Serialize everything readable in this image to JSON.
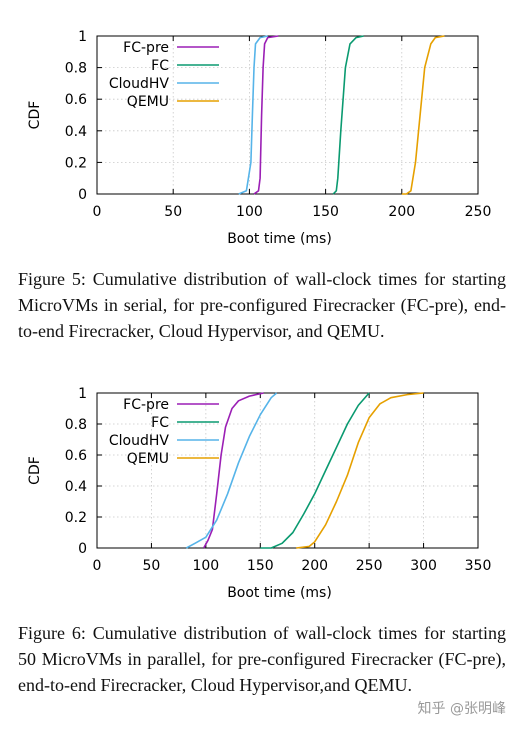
{
  "chart_data": [
    {
      "type": "line",
      "xlabel": "Boot time (ms)",
      "ylabel": "CDF",
      "xlim": [
        0,
        250
      ],
      "ylim": [
        0,
        1
      ],
      "xticks": [
        0,
        50,
        100,
        150,
        200,
        250
      ],
      "yticks": [
        0,
        0.2,
        0.4,
        0.6,
        0.8,
        1
      ],
      "legend": "top-left",
      "grid": true,
      "series": [
        {
          "name": "FC-pre",
          "color": "#9b1fb5",
          "points": [
            [
              103,
              0
            ],
            [
              106,
              0.02
            ],
            [
              107,
              0.1
            ],
            [
              108,
              0.5
            ],
            [
              109,
              0.8
            ],
            [
              110,
              0.95
            ],
            [
              112,
              0.99
            ],
            [
              119,
              1
            ]
          ]
        },
        {
          "name": "FC",
          "color": "#0a9a70",
          "points": [
            [
              155,
              0
            ],
            [
              157,
              0.02
            ],
            [
              158,
              0.1
            ],
            [
              160,
              0.4
            ],
            [
              163,
              0.8
            ],
            [
              166,
              0.95
            ],
            [
              170,
              0.99
            ],
            [
              175,
              1
            ]
          ]
        },
        {
          "name": "CloudHV",
          "color": "#56b4e9",
          "points": [
            [
              93,
              0
            ],
            [
              98,
              0.02
            ],
            [
              101,
              0.2
            ],
            [
              102,
              0.5
            ],
            [
              103,
              0.8
            ],
            [
              104,
              0.95
            ],
            [
              107,
              0.99
            ],
            [
              112,
              1
            ]
          ]
        },
        {
          "name": "QEMU",
          "color": "#e6a000",
          "points": [
            [
              200,
              0
            ],
            [
              203,
              0
            ],
            [
              206,
              0.02
            ],
            [
              209,
              0.2
            ],
            [
              212,
              0.5
            ],
            [
              215,
              0.8
            ],
            [
              219,
              0.95
            ],
            [
              222,
              0.99
            ],
            [
              228,
              1
            ]
          ]
        }
      ]
    },
    {
      "type": "line",
      "xlabel": "Boot time (ms)",
      "ylabel": "CDF",
      "xlim": [
        0,
        350
      ],
      "ylim": [
        0,
        1
      ],
      "xticks": [
        0,
        50,
        100,
        150,
        200,
        250,
        300,
        350
      ],
      "yticks": [
        0,
        0.2,
        0.4,
        0.6,
        0.8,
        1
      ],
      "legend": "top-left",
      "grid": true,
      "series": [
        {
          "name": "FC-pre",
          "color": "#9b1fb5",
          "points": [
            [
              98,
              0
            ],
            [
              102,
              0.05
            ],
            [
              106,
              0.12
            ],
            [
              110,
              0.35
            ],
            [
              114,
              0.6
            ],
            [
              118,
              0.78
            ],
            [
              124,
              0.9
            ],
            [
              130,
              0.95
            ],
            [
              140,
              0.98
            ],
            [
              153,
              1
            ]
          ]
        },
        {
          "name": "FC",
          "color": "#0a9a70",
          "points": [
            [
              150,
              0
            ],
            [
              160,
              0
            ],
            [
              170,
              0.03
            ],
            [
              180,
              0.1
            ],
            [
              190,
              0.22
            ],
            [
              200,
              0.35
            ],
            [
              210,
              0.5
            ],
            [
              220,
              0.65
            ],
            [
              230,
              0.8
            ],
            [
              240,
              0.92
            ],
            [
              250,
              1
            ]
          ]
        },
        {
          "name": "CloudHV",
          "color": "#56b4e9",
          "points": [
            [
              82,
              0
            ],
            [
              90,
              0.03
            ],
            [
              100,
              0.07
            ],
            [
              110,
              0.18
            ],
            [
              120,
              0.35
            ],
            [
              130,
              0.55
            ],
            [
              140,
              0.72
            ],
            [
              150,
              0.86
            ],
            [
              160,
              0.97
            ],
            [
              165,
              1
            ]
          ]
        },
        {
          "name": "QEMU",
          "color": "#e6a000",
          "points": [
            [
              183,
              0
            ],
            [
              195,
              0.01
            ],
            [
              200,
              0.04
            ],
            [
              210,
              0.15
            ],
            [
              220,
              0.3
            ],
            [
              230,
              0.47
            ],
            [
              240,
              0.68
            ],
            [
              250,
              0.84
            ],
            [
              260,
              0.93
            ],
            [
              270,
              0.97
            ],
            [
              285,
              0.99
            ],
            [
              300,
              1
            ]
          ]
        }
      ]
    }
  ],
  "captions": {
    "fig5": "Figure 5: Cumulative distribution of wall-clock times for starting MicroVMs in serial, for pre-configured Firecracker (FC-pre), end-to-end Firecracker, Cloud Hypervisor, and QEMU.",
    "fig6": "Figure 6: Cumulative distribution of wall-clock times for starting 50 MicroVMs in parallel, for pre-configured Firecracker (FC-pre), end-to-end Firecracker, Cloud Hypervisor,and QEMU."
  },
  "watermark": "知乎 @张明峰"
}
